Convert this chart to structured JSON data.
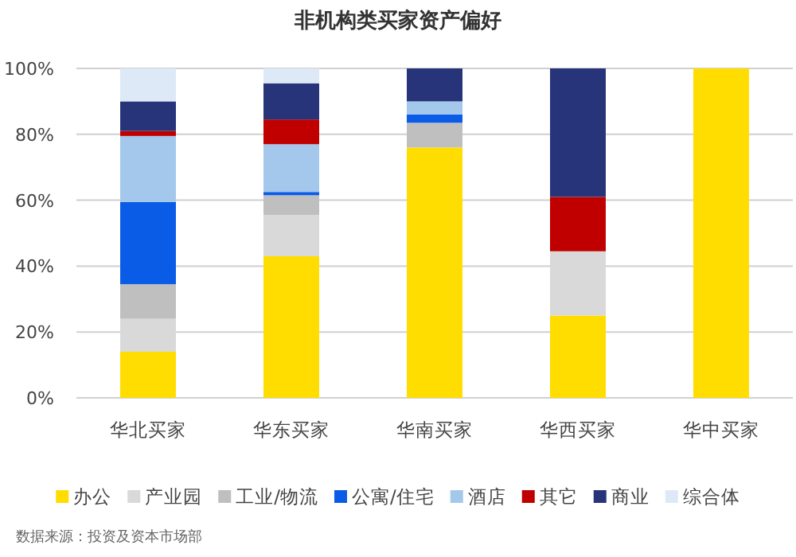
{
  "chart_data": {
    "type": "bar",
    "title": "非机构类买家资产偏好",
    "stacked": true,
    "categories": [
      "华北买家",
      "华东买家",
      "华南买家",
      "华西买家",
      "华中买家"
    ],
    "series": [
      {
        "name": "办公",
        "color": "#ffdd00",
        "values": [
          14,
          43,
          76,
          25,
          100
        ]
      },
      {
        "name": "产业园",
        "color": "#d9d9d9",
        "values": [
          10,
          12.5,
          0,
          19.5,
          0
        ]
      },
      {
        "name": "工业/物流",
        "color": "#bfbfbf",
        "values": [
          10.5,
          6,
          7.5,
          0,
          0
        ]
      },
      {
        "name": "公寓/住宅",
        "color": "#0a5ce6",
        "values": [
          25,
          1,
          2.5,
          0,
          0
        ]
      },
      {
        "name": "酒店",
        "color": "#a4c8ec",
        "values": [
          20,
          14.5,
          4,
          0,
          0
        ]
      },
      {
        "name": "其它",
        "color": "#c00000",
        "values": [
          1.5,
          7.5,
          0,
          16.5,
          0
        ]
      },
      {
        "name": "商业",
        "color": "#283479",
        "values": [
          9,
          11,
          10,
          39,
          0
        ]
      },
      {
        "name": "综合体",
        "color": "#dde9f6",
        "values": [
          10,
          4.5,
          0,
          0,
          0
        ]
      }
    ],
    "ylim": [
      0,
      100
    ],
    "yticks": [
      {
        "value": 0,
        "label": "0%"
      },
      {
        "value": 20,
        "label": "20%"
      },
      {
        "value": 40,
        "label": "40%"
      },
      {
        "value": 60,
        "label": "60%"
      },
      {
        "value": 80,
        "label": "80%"
      },
      {
        "value": 100,
        "label": "100%"
      }
    ],
    "grid": "y",
    "legend": "bottom",
    "annotations": [
      "数据来源：投资及资本市场部"
    ]
  }
}
